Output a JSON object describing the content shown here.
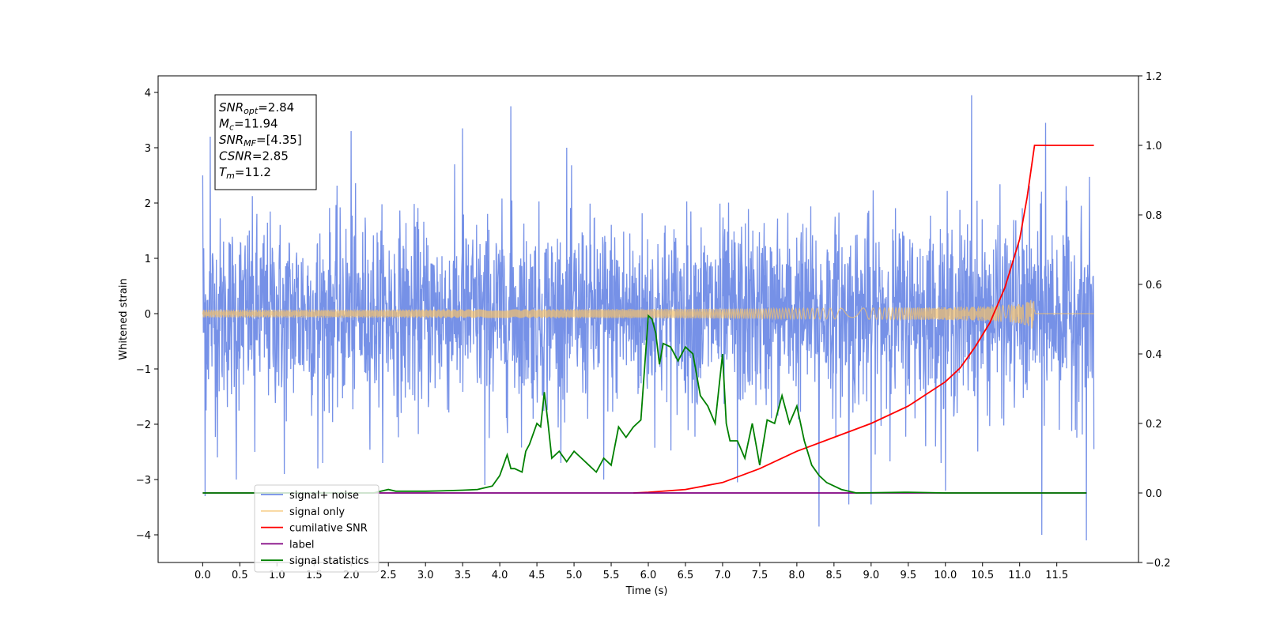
{
  "chart_data": {
    "type": "line",
    "xlabel": "Time (s)",
    "ylabel": "Whitened strain",
    "xlim": [
      -0.6,
      12.6
    ],
    "ylim": [
      -4.5,
      4.3
    ],
    "y2lim": [
      -0.2,
      1.2
    ],
    "x_ticks": [
      "0.0",
      "0.5",
      "1.0",
      "1.5",
      "2.0",
      "2.5",
      "3.0",
      "3.5",
      "4.0",
      "4.5",
      "5.0",
      "5.5",
      "6.0",
      "6.5",
      "7.0",
      "7.5",
      "8.0",
      "8.5",
      "9.0",
      "9.5",
      "10.0",
      "10.5",
      "11.0",
      "11.5"
    ],
    "y_ticks": [
      "4",
      "3",
      "2",
      "1",
      "0",
      "−1",
      "−2",
      "−3",
      "−4"
    ],
    "y2_ticks": [
      "1.2",
      "1.0",
      "0.8",
      "0.6",
      "0.4",
      "0.2",
      "0.0",
      "−0.2"
    ],
    "grid": false,
    "legend_position": "bottom-left",
    "annotation": {
      "lines": [
        {
          "base": "SNR",
          "sub": "opt",
          "value": "=2.84"
        },
        {
          "base": "M",
          "sub": "c",
          "value": "=11.94"
        },
        {
          "base": "SNR",
          "sub": "MF",
          "value": "=[4.35]"
        },
        {
          "base": "CSNR",
          "sub": "",
          "value": "=2.85"
        },
        {
          "base": "T",
          "sub": "m",
          "value": "=11.2"
        }
      ]
    },
    "noise_extremes": [
      {
        "x": 0.0,
        "y": 2.5
      },
      {
        "x": 0.03,
        "y": -3.3
      },
      {
        "x": 0.1,
        "y": 3.2
      },
      {
        "x": 0.2,
        "y": -2.6
      },
      {
        "x": 0.45,
        "y": -3.0
      },
      {
        "x": 0.7,
        "y": -2.5
      },
      {
        "x": 1.1,
        "y": -2.9
      },
      {
        "x": 1.55,
        "y": -2.8
      },
      {
        "x": 2.0,
        "y": 3.3
      },
      {
        "x": 3.5,
        "y": 3.35
      },
      {
        "x": 3.8,
        "y": -3.1
      },
      {
        "x": 4.15,
        "y": 3.75
      },
      {
        "x": 4.9,
        "y": 3.0
      },
      {
        "x": 5.4,
        "y": -3.0
      },
      {
        "x": 7.2,
        "y": -3.05
      },
      {
        "x": 8.3,
        "y": -3.85
      },
      {
        "x": 8.7,
        "y": -3.45
      },
      {
        "x": 9.0,
        "y": -3.45
      },
      {
        "x": 10.0,
        "y": -3.2
      },
      {
        "x": 10.35,
        "y": 3.95
      },
      {
        "x": 11.3,
        "y": -4.0
      },
      {
        "x": 11.35,
        "y": 3.45
      },
      {
        "x": 11.9,
        "y": -4.1
      },
      {
        "x": 12.0,
        "y": -2.45
      }
    ],
    "series": [
      {
        "name": "signal+ noise",
        "color": "#6f8be6",
        "axis": "left",
        "kind": "noise",
        "x_range": [
          0,
          12.0
        ],
        "std": 0.85
      },
      {
        "name": "signal only",
        "color": "#f5c26b",
        "axis": "left",
        "kind": "chirp",
        "x_range": [
          0,
          11.2
        ],
        "peak": 0.5
      },
      {
        "name": "cumilative SNR",
        "color": "#ff0000",
        "axis": "right",
        "x": [
          5.8,
          6.0,
          6.5,
          7.0,
          7.5,
          8.0,
          8.5,
          9.0,
          9.5,
          10.0,
          10.2,
          10.4,
          10.6,
          10.8,
          11.0,
          11.1,
          11.2,
          11.5,
          12.0
        ],
        "y": [
          0.0,
          0.002,
          0.01,
          0.03,
          0.07,
          0.12,
          0.16,
          0.2,
          0.25,
          0.32,
          0.36,
          0.42,
          0.49,
          0.59,
          0.73,
          0.85,
          1.0,
          1.0,
          1.0
        ]
      },
      {
        "name": "label",
        "color": "#800080",
        "axis": "right",
        "x": [
          0.0,
          11.9
        ],
        "y": [
          0.0,
          0.0
        ]
      },
      {
        "name": "signal statistics",
        "color": "#008000",
        "axis": "right",
        "x": [
          0.0,
          2.3,
          2.5,
          2.6,
          2.8,
          3.0,
          3.2,
          3.5,
          3.7,
          3.9,
          4.0,
          4.05,
          4.1,
          4.15,
          4.2,
          4.3,
          4.35,
          4.4,
          4.5,
          4.55,
          4.6,
          4.65,
          4.7,
          4.8,
          4.9,
          5.0,
          5.1,
          5.2,
          5.3,
          5.4,
          5.5,
          5.6,
          5.7,
          5.8,
          5.9,
          6.0,
          6.05,
          6.1,
          6.15,
          6.2,
          6.3,
          6.4,
          6.5,
          6.6,
          6.7,
          6.8,
          6.9,
          7.0,
          7.05,
          7.1,
          7.2,
          7.3,
          7.4,
          7.5,
          7.6,
          7.7,
          7.8,
          7.9,
          8.0,
          8.1,
          8.2,
          8.3,
          8.4,
          8.6,
          8.8,
          9.5,
          10.0,
          11.9
        ],
        "y": [
          0.0,
          0.0,
          0.01,
          0.005,
          0.005,
          0.005,
          0.006,
          0.008,
          0.01,
          0.02,
          0.05,
          0.08,
          0.11,
          0.07,
          0.07,
          0.06,
          0.12,
          0.14,
          0.2,
          0.19,
          0.29,
          0.2,
          0.1,
          0.12,
          0.09,
          0.12,
          0.1,
          0.08,
          0.06,
          0.1,
          0.08,
          0.19,
          0.16,
          0.19,
          0.21,
          0.51,
          0.5,
          0.46,
          0.37,
          0.43,
          0.42,
          0.38,
          0.42,
          0.4,
          0.28,
          0.25,
          0.2,
          0.4,
          0.2,
          0.15,
          0.15,
          0.1,
          0.2,
          0.08,
          0.21,
          0.2,
          0.28,
          0.2,
          0.25,
          0.15,
          0.08,
          0.05,
          0.03,
          0.01,
          0.0,
          0.002,
          0.0,
          0.0
        ]
      }
    ]
  }
}
